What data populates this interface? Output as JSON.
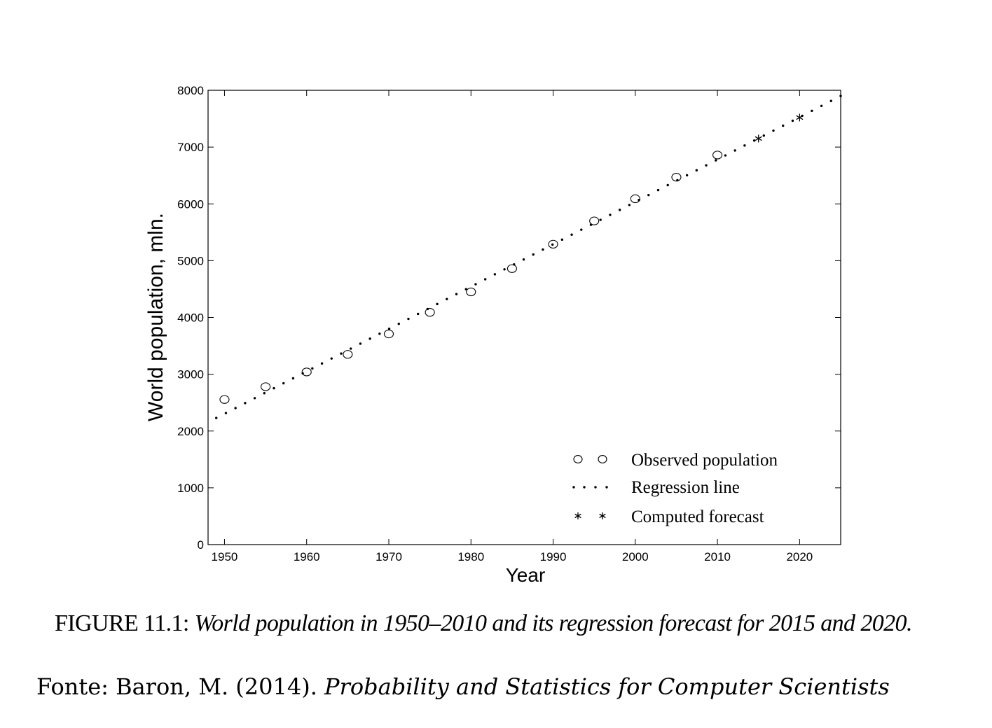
{
  "chart_data": {
    "type": "scatter",
    "xlabel": "Year",
    "ylabel": "World population, mln.",
    "xlim": [
      1948,
      2025
    ],
    "ylim": [
      0,
      8000
    ],
    "x_ticks": [
      1950,
      1960,
      1970,
      1980,
      1990,
      2000,
      2010,
      2020
    ],
    "y_ticks": [
      0,
      1000,
      2000,
      3000,
      4000,
      5000,
      6000,
      7000,
      8000
    ],
    "grid": false,
    "legend_position": "bottom-right",
    "series": [
      {
        "name": "Observed population",
        "marker": "circle",
        "x": [
          1950,
          1955,
          1960,
          1965,
          1970,
          1975,
          1980,
          1985,
          1990,
          1995,
          2000,
          2005,
          2010
        ],
        "y": [
          2555,
          2780,
          3040,
          3350,
          3710,
          4090,
          4450,
          4860,
          5290,
          5700,
          6090,
          6470,
          6860
        ]
      },
      {
        "name": "Regression line",
        "marker": "dotted-line",
        "x": [
          1949,
          2025
        ],
        "y": [
          2230,
          7900
        ]
      },
      {
        "name": "Computed forecast",
        "marker": "asterisk",
        "x": [
          2015,
          2020
        ],
        "y": [
          7150,
          7520
        ]
      }
    ]
  },
  "caption": {
    "label": "FIGURE 11.1: ",
    "text": "World population in 1950–2010 and its regression forecast for 2015 and 2020."
  },
  "source": {
    "prefix": "Fonte: Baron, M. (2014). ",
    "title": "Probability and Statistics for Computer Scientists"
  }
}
